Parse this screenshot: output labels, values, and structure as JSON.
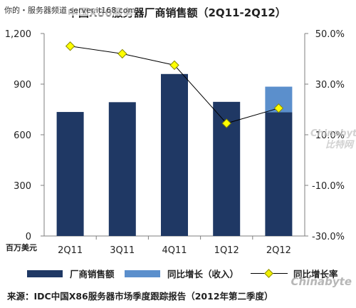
{
  "watermark": {
    "top_text": "你的・服务器频道 server.it168.com",
    "bottom_logo": "Chinabyte",
    "side_logo": "Chinabyte 比特网"
  },
  "chart_data": {
    "type": "bar",
    "title": "中国X86服务器厂商销售额（2Q11-2Q12）",
    "categories": [
      "2Q11",
      "3Q11",
      "4Q11",
      "1Q12",
      "2Q12"
    ],
    "series": [
      {
        "name": "厂商销售额",
        "chart_type": "bar",
        "axis": "left",
        "color": "#1f3864",
        "values": [
          735,
          793,
          960,
          795,
          733
        ]
      },
      {
        "name": "同比增长（收入）",
        "chart_type": "bar-stacked",
        "axis": "left",
        "color": "#5b8fcc",
        "values": [
          0,
          0,
          0,
          0,
          152
        ]
      },
      {
        "name": "同比增长率",
        "chart_type": "line",
        "axis": "right",
        "color": "#000000",
        "marker_color": "#ffff00",
        "values": [
          45.0,
          42.0,
          37.5,
          14.5,
          20.5
        ]
      }
    ],
    "ylabel": "百万美元",
    "ylim": [
      0,
      1200
    ],
    "yticks": [
      0,
      300,
      600,
      900,
      1200
    ],
    "ytick_labels": [
      "0",
      "300",
      "600",
      "900",
      "1,200"
    ],
    "y2lim": [
      -30,
      50
    ],
    "y2ticks": [
      -30,
      -10,
      10,
      30,
      50
    ],
    "y2tick_labels": [
      "-30.0%",
      "-10.0%",
      "10.0%",
      "30.0%",
      "50.0%"
    ],
    "grid": false,
    "legend_position": "bottom"
  },
  "footer": {
    "source": "来源：IDC中国X86服务器市场季度跟踪报告（2012年第二季度）"
  }
}
